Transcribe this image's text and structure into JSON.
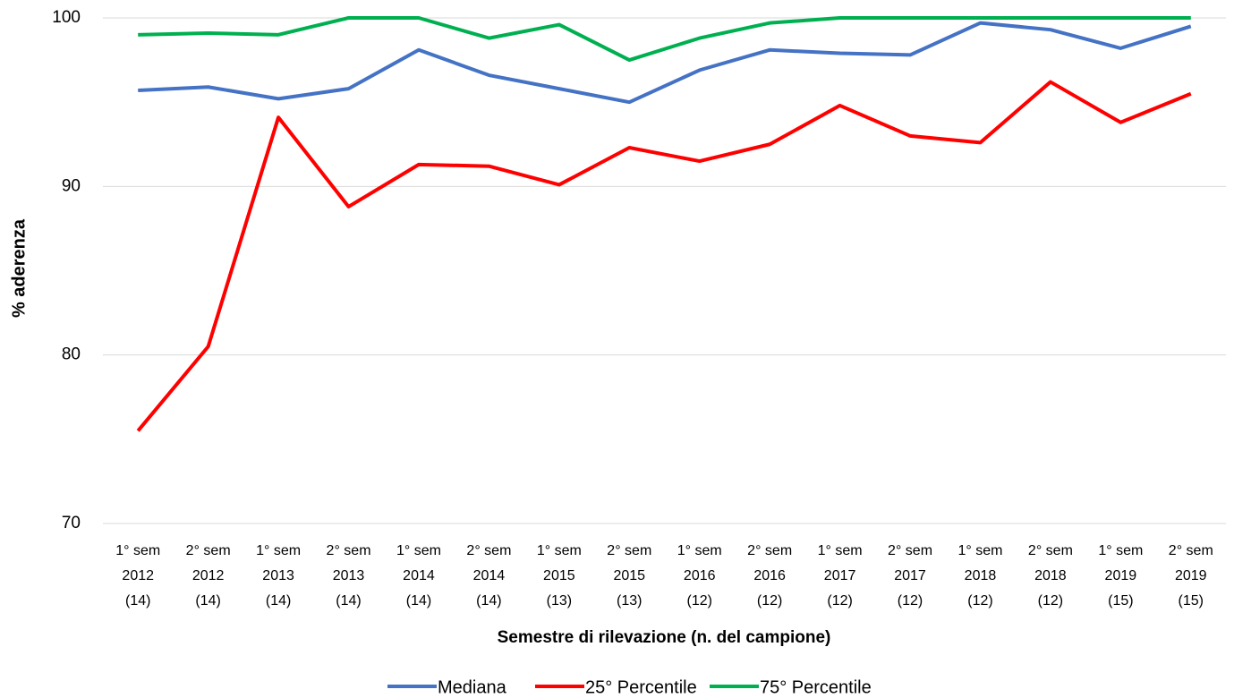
{
  "chart_data": {
    "type": "line",
    "y_label": "% aderenza",
    "x_label": "Semestre di rilevazione (n. del campione)",
    "categories": [
      [
        "1° sem",
        "2012",
        "(14)"
      ],
      [
        "2° sem",
        "2012",
        "(14)"
      ],
      [
        "1° sem",
        "2013",
        "(14)"
      ],
      [
        "2° sem",
        "2013",
        "(14)"
      ],
      [
        "1° sem",
        "2014",
        "(14)"
      ],
      [
        "2° sem",
        "2014",
        "(14)"
      ],
      [
        "1° sem",
        "2015",
        "(13)"
      ],
      [
        "2° sem",
        "2015",
        "(13)"
      ],
      [
        "1° sem",
        "2016",
        "(12)"
      ],
      [
        "2° sem",
        "2016",
        "(12)"
      ],
      [
        "1° sem",
        "2017",
        "(12)"
      ],
      [
        "2° sem",
        "2017",
        "(12)"
      ],
      [
        "1° sem",
        "2018",
        "(12)"
      ],
      [
        "2° sem",
        "2018",
        "(12)"
      ],
      [
        "1° sem",
        "2019",
        "(15)"
      ],
      [
        "2° sem",
        "2019",
        "(15)"
      ]
    ],
    "series": [
      {
        "name": "Mediana",
        "color": "#4472c4",
        "values": [
          95.7,
          95.9,
          95.2,
          95.8,
          98.1,
          96.6,
          95.8,
          95.0,
          96.9,
          98.1,
          97.9,
          97.8,
          99.7,
          99.3,
          98.2,
          99.5
        ]
      },
      {
        "name": "25° Percentile",
        "color": "#ff0000",
        "values": [
          75.5,
          80.5,
          94.1,
          88.8,
          91.3,
          91.2,
          90.1,
          92.3,
          91.5,
          92.5,
          94.8,
          93.0,
          92.6,
          96.2,
          93.8,
          95.5
        ]
      },
      {
        "name": "75° Percentile",
        "color": "#00b050",
        "values": [
          99.0,
          99.1,
          99.0,
          100,
          100,
          98.8,
          99.6,
          97.5,
          98.8,
          99.7,
          100,
          100,
          100,
          100,
          100,
          100
        ]
      }
    ],
    "ylim": [
      70,
      100
    ],
    "yticks": [
      70,
      80,
      90,
      100
    ],
    "grid": true,
    "legend": "bottom"
  }
}
